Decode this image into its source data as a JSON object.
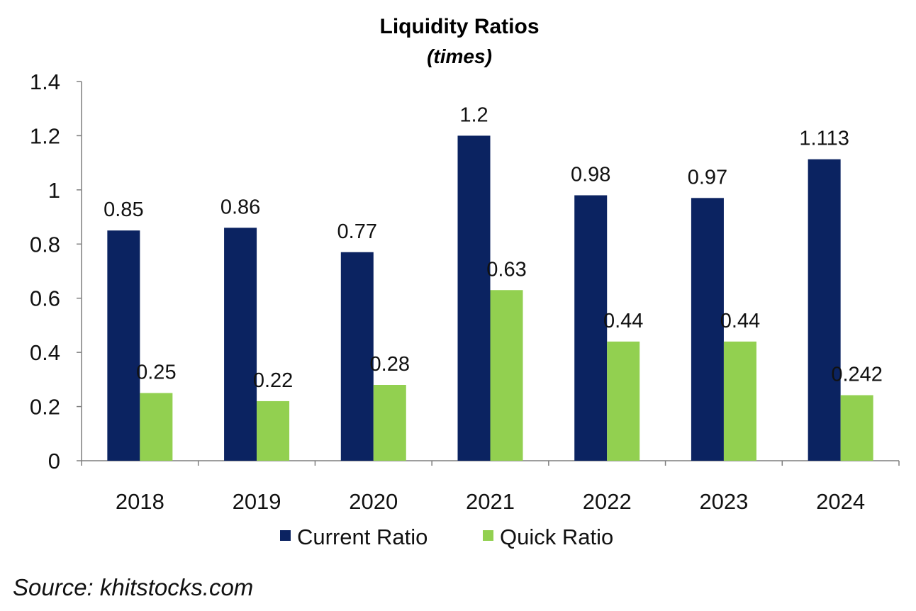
{
  "chart_data": {
    "type": "bar",
    "title": "Liquidity Ratios",
    "subtitle": "(times)",
    "categories": [
      "2018",
      "2019",
      "2020",
      "2021",
      "2022",
      "2023",
      "2024"
    ],
    "series": [
      {
        "name": "Current Ratio",
        "values": [
          0.85,
          0.86,
          0.77,
          1.2,
          0.98,
          0.97,
          1.113
        ],
        "labels": [
          "0.85",
          "0.86",
          "0.77",
          "1.2",
          "0.98",
          "0.97",
          "1.113"
        ],
        "color": "#0b2361"
      },
      {
        "name": "Quick Ratio",
        "values": [
          0.25,
          0.22,
          0.28,
          0.63,
          0.44,
          0.44,
          0.242
        ],
        "labels": [
          "0.25",
          "0.22",
          "0.28",
          "0.63",
          "0.44",
          "0.44",
          "0.242"
        ],
        "color": "#92d050"
      }
    ],
    "ylim": [
      0,
      1.4
    ],
    "y_ticks": [
      0,
      0.2,
      0.4,
      0.6,
      0.8,
      1,
      1.2,
      1.4
    ],
    "y_tick_labels": [
      "0",
      "0.2",
      "0.4",
      "0.6",
      "0.8",
      "1",
      "1.2",
      "1.4"
    ],
    "xlabel": "",
    "ylabel": "",
    "grid": false,
    "legend_position": "bottom"
  },
  "source": "Source: khitstocks.com"
}
